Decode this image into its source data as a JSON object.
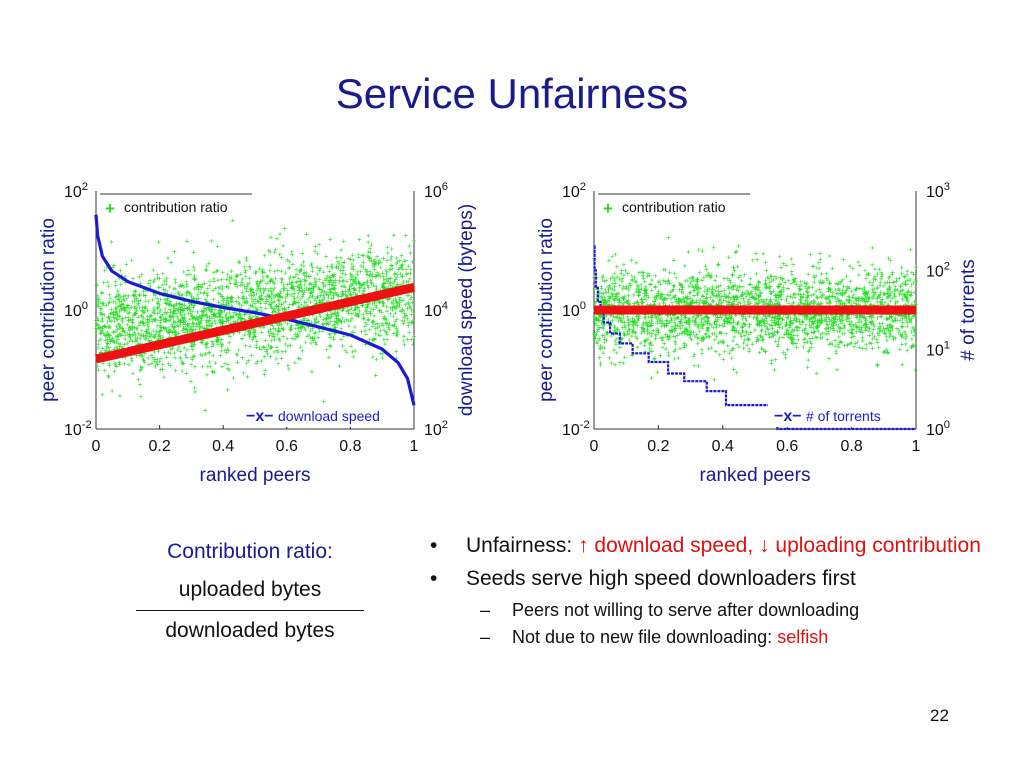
{
  "slide": {
    "title": "Service Unfairness",
    "page_number": "22"
  },
  "definition": {
    "label": "Contribution ratio:",
    "numerator": "uploaded bytes",
    "denominator": "downloaded bytes"
  },
  "bullets": {
    "b1_lead": "Unfairness:",
    "b1_up_arrow": "↑",
    "b1_down_arrow": "↓",
    "b1_part1": "download speed,",
    "b1_part2": "uploading contribution",
    "b2_text": "Seeds serve high speed downloaders first",
    "sub1_text": "Peers not willing to serve after downloading",
    "sub2_lead": "Not due to new file downloading:",
    "sub2_highlight": "selfish"
  },
  "colors": {
    "title": "#1a1a8c",
    "axis_text": "#1a1a8c",
    "scatter": "#22dd22",
    "blue_series": "#1a1ad6",
    "red_trend": "#ee1111",
    "highlight_text": "#e01010"
  },
  "chart_data": [
    {
      "type": "scatter",
      "xlabel": "ranked peers",
      "ylabel": "peer contribution ratio",
      "ylabel_right": "download speed (byteps)",
      "xlim": [
        0,
        1
      ],
      "ylim": [
        0.01,
        100
      ],
      "ylim_right": [
        100,
        1000000
      ],
      "yscale": "log",
      "yscale_right": "log",
      "x_ticks": [
        "0",
        "0.2",
        "0.4",
        "0.6",
        "0.8",
        "1"
      ],
      "y_ticks": [
        {
          "base": "10",
          "exp": "2"
        },
        {
          "base": "10",
          "exp": "0"
        },
        {
          "base": "10",
          "exp": "-2"
        }
      ],
      "y_ticks_right": [
        {
          "base": "10",
          "exp": "6"
        },
        {
          "base": "10",
          "exp": "4"
        },
        {
          "base": "10",
          "exp": "2"
        }
      ],
      "legend": [
        {
          "marker": "+",
          "label": "contribution ratio",
          "placement": "top-left"
        },
        {
          "marker": "−x−",
          "label": "download speed",
          "placement": "bottom-right"
        }
      ],
      "series": [
        {
          "name": "contribution ratio",
          "kind": "scatter",
          "axis": "left",
          "center_log10": 0.0,
          "spread_log10": 0.75,
          "points": 2500
        },
        {
          "name": "download speed",
          "kind": "line",
          "axis": "right",
          "x": [
            0,
            0.005,
            0.02,
            0.05,
            0.1,
            0.2,
            0.3,
            0.4,
            0.5,
            0.6,
            0.7,
            0.8,
            0.9,
            0.95,
            0.98,
            1.0
          ],
          "y": [
            400000,
            180000,
            80000,
            45000,
            30000,
            19000,
            14000,
            11000,
            9000,
            7000,
            5200,
            3800,
            2200,
            1300,
            700,
            250
          ]
        },
        {
          "name": "",
          "kind": "trend",
          "axis": "left",
          "x": [
            0,
            1
          ],
          "y": [
            0.15,
            2.4
          ]
        }
      ]
    },
    {
      "type": "scatter",
      "xlabel": "ranked peers",
      "ylabel": "peer contribution ratio",
      "ylabel_right": "# of torrents",
      "xlim": [
        0,
        1
      ],
      "ylim": [
        0.01,
        100
      ],
      "ylim_right": [
        1,
        1000
      ],
      "yscale": "log",
      "yscale_right": "log",
      "x_ticks": [
        "0",
        "0.2",
        "0.4",
        "0.6",
        "0.8",
        "1"
      ],
      "y_ticks": [
        {
          "base": "10",
          "exp": "2"
        },
        {
          "base": "10",
          "exp": "0"
        },
        {
          "base": "10",
          "exp": "-2"
        }
      ],
      "y_ticks_right": [
        {
          "base": "10",
          "exp": "3"
        },
        {
          "base": "10",
          "exp": "2"
        },
        {
          "base": "10",
          "exp": "1"
        },
        {
          "base": "10",
          "exp": "0"
        }
      ],
      "legend": [
        {
          "marker": "+",
          "label": "contribution ratio",
          "placement": "top-left"
        },
        {
          "marker": "−x−",
          "label": "# of torrents",
          "placement": "bottom-right"
        }
      ],
      "series": [
        {
          "name": "contribution ratio",
          "kind": "scatter",
          "axis": "left",
          "center_log10": 0.0,
          "spread_log10": 0.65,
          "points": 2500
        },
        {
          "name": "# of torrents",
          "kind": "step",
          "axis": "right",
          "x": [
            0,
            0.002,
            0.006,
            0.012,
            0.02,
            0.03,
            0.05,
            0.08,
            0.12,
            0.17,
            0.23,
            0.28,
            0.35,
            0.41,
            0.55,
            0.57,
            1.0
          ],
          "y": [
            200,
            100,
            60,
            40,
            30,
            22,
            16,
            12,
            9,
            7,
            5,
            4,
            3,
            2,
            2,
            1,
            1
          ]
        },
        {
          "name": "",
          "kind": "trend",
          "axis": "left",
          "x": [
            0,
            1
          ],
          "y": [
            1,
            1
          ]
        }
      ]
    }
  ]
}
